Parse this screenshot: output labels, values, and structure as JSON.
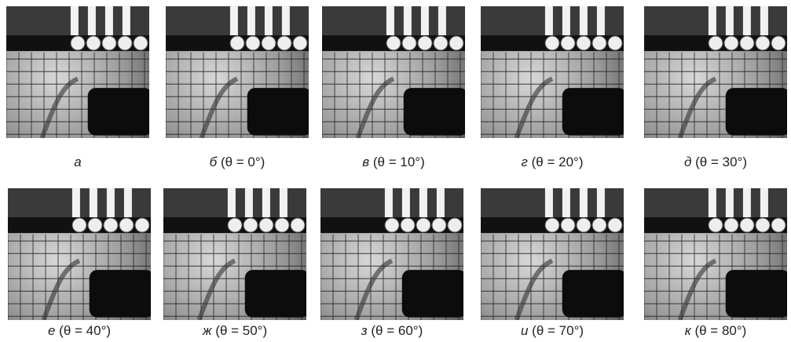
{
  "panels": [
    {
      "letter": "а",
      "angle": null
    },
    {
      "letter": "б",
      "angle": "(θ = 0°)"
    },
    {
      "letter": "в",
      "angle": "(θ = 10°)"
    },
    {
      "letter": "г",
      "angle": "(θ = 20°)"
    },
    {
      "letter": "д",
      "angle": "(θ = 30°)"
    },
    {
      "letter": "е",
      "angle": "(θ = 40°)"
    },
    {
      "letter": "ж",
      "angle": "(θ = 50°)"
    },
    {
      "letter": "з",
      "angle": "(θ = 60°)"
    },
    {
      "letter": "и",
      "angle": "(θ = 70°)"
    },
    {
      "letter": "к",
      "angle": "(θ = 80°)"
    }
  ]
}
